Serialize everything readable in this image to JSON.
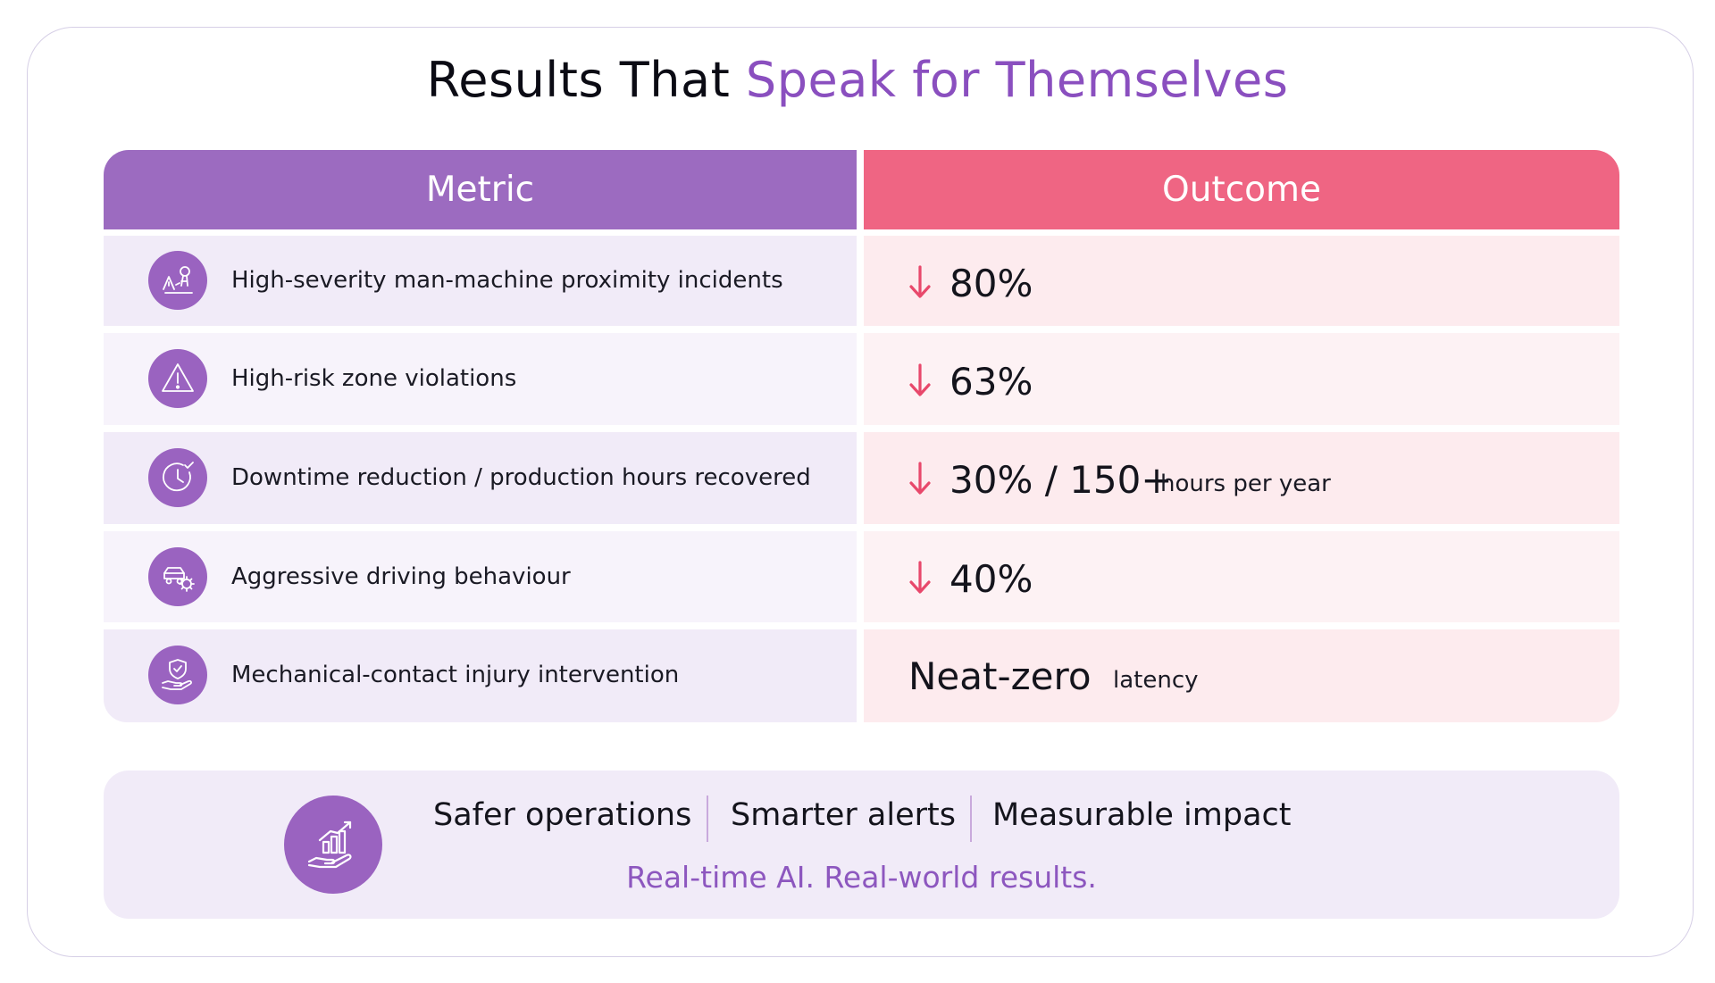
{
  "title": {
    "main": "Results That ",
    "accent": "Speak for Themselves"
  },
  "table": {
    "headers": {
      "metric": "Metric",
      "outcome": "Outcome"
    },
    "rows": [
      {
        "icon": "people-proximity-icon",
        "metric": "High-severity man-machine proximity incidents",
        "direction": "down",
        "value": "80%",
        "unit": ""
      },
      {
        "icon": "warning-triangle-icon",
        "metric": "High-risk zone violations",
        "direction": "down",
        "value": "63%",
        "unit": ""
      },
      {
        "icon": "clock-check-icon",
        "metric": "Downtime reduction / production hours recovered",
        "direction": "down",
        "value": "30% / 150+",
        "unit": "hours per year"
      },
      {
        "icon": "car-gear-icon",
        "metric": "Aggressive driving behaviour",
        "direction": "down",
        "value": "40%",
        "unit": ""
      },
      {
        "icon": "hand-shield-icon",
        "metric": "Mechanical-contact injury intervention",
        "direction": "none",
        "value": "Neat-zero",
        "unit": "latency"
      }
    ]
  },
  "banner": {
    "icon": "hand-growth-chart-icon",
    "tags": [
      "Safer operations",
      "Smarter alerts",
      "Measurable impact"
    ],
    "tagline": "Real-time AI. Real-world results."
  },
  "colors": {
    "purple": "#9c6bc0",
    "pink": "#ef6583",
    "accent_text": "#8a4fbf"
  }
}
